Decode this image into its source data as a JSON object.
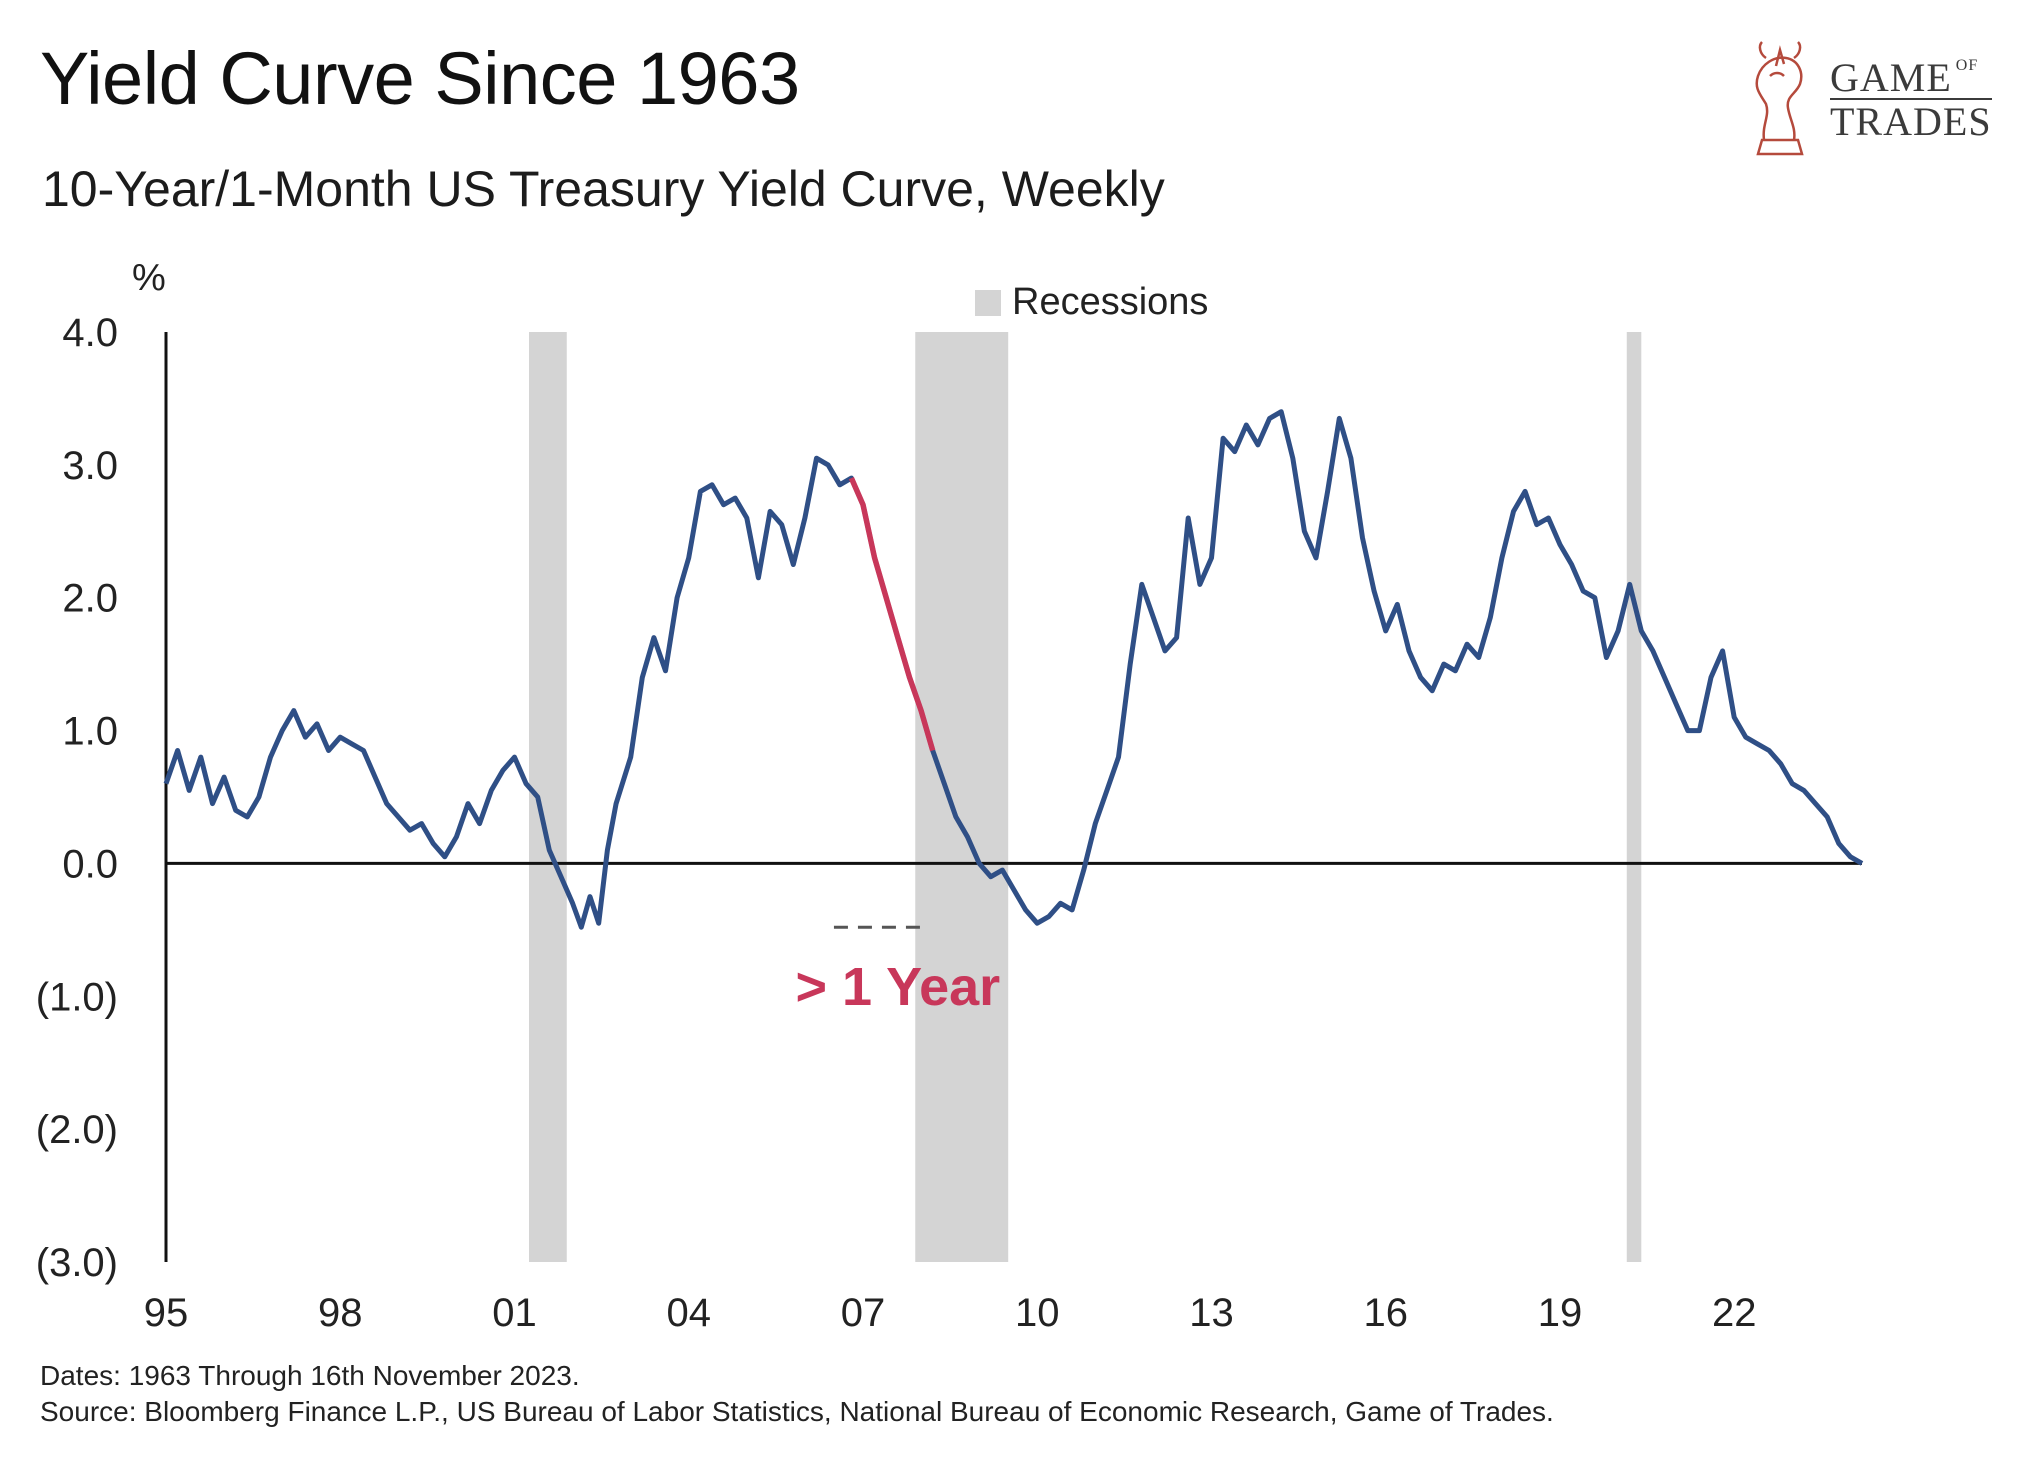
{
  "header": {
    "title": "Yield Curve Since 1963",
    "subtitle": "10-Year/1-Month US Treasury Yield Curve, Weekly"
  },
  "logo": {
    "line1": "GAME",
    "line1_small": "OF",
    "line2": "TRADES"
  },
  "footer": {
    "dates": "Dates: 1963 Through 16th November 2023.",
    "source": "Source: Bloomberg Finance L.P., US Bureau of Labor Statistics, National Bureau of Economic Research, Game of Trades."
  },
  "colors": {
    "series": "#2f4f86",
    "highlight": "#c8375a",
    "recession": "#d4d4d4",
    "axis": "#111111"
  },
  "chart_data": {
    "type": "line",
    "title": "Yield Curve Since 1963",
    "subtitle": "10-Year/1-Month US Treasury Yield Curve, Weekly",
    "ylabel": "%",
    "xlabel": "",
    "xlim": [
      1995.0,
      2024.2
    ],
    "ylim": [
      -3.0,
      4.0
    ],
    "yticks": [
      4.0,
      3.0,
      2.0,
      1.0,
      0.0,
      -1.0,
      -2.0,
      -3.0
    ],
    "ytick_labels": [
      "4.0",
      "3.0",
      "2.0",
      "1.0",
      "0.0",
      "(1.0)",
      "(2.0)",
      "(3.0)"
    ],
    "xticks": [
      1995,
      1998,
      2001,
      2004,
      2007,
      2010,
      2013,
      2016,
      2019,
      2022
    ],
    "xtick_labels": [
      "95",
      "98",
      "01",
      "04",
      "07",
      "10",
      "13",
      "16",
      "19",
      "22"
    ],
    "legend": {
      "label": "Recessions",
      "position": "top-center"
    },
    "recessions": [
      {
        "start": 2001.25,
        "end": 2001.9
      },
      {
        "start": 2007.9,
        "end": 2009.5
      },
      {
        "start": 2020.15,
        "end": 2020.4
      }
    ],
    "annotation": {
      "text": "> 1 Year",
      "x": 2007.6,
      "y": -0.9
    },
    "highlight_range": [
      2006.8,
      2007.9
    ],
    "series": [
      {
        "name": "10Y-1M Spread",
        "points": [
          [
            1995.0,
            0.6
          ],
          [
            1995.2,
            0.85
          ],
          [
            1995.4,
            0.55
          ],
          [
            1995.6,
            0.8
          ],
          [
            1995.8,
            0.45
          ],
          [
            1996.0,
            0.65
          ],
          [
            1996.2,
            0.4
          ],
          [
            1996.4,
            0.35
          ],
          [
            1996.6,
            0.5
          ],
          [
            1996.8,
            0.8
          ],
          [
            1997.0,
            1.0
          ],
          [
            1997.2,
            1.15
          ],
          [
            1997.4,
            0.95
          ],
          [
            1997.6,
            1.05
          ],
          [
            1997.8,
            0.85
          ],
          [
            1998.0,
            0.95
          ],
          [
            1998.2,
            0.9
          ],
          [
            1998.4,
            0.85
          ],
          [
            1998.6,
            0.65
          ],
          [
            1998.8,
            0.45
          ],
          [
            1999.0,
            0.35
          ],
          [
            1999.2,
            0.25
          ],
          [
            1999.4,
            0.3
          ],
          [
            1999.6,
            0.15
          ],
          [
            1999.8,
            0.05
          ],
          [
            2000.0,
            0.2
          ],
          [
            2000.2,
            0.45
          ],
          [
            2000.4,
            0.3
          ],
          [
            2000.6,
            0.55
          ],
          [
            2000.8,
            0.7
          ],
          [
            2001.0,
            0.8
          ],
          [
            2001.2,
            0.6
          ],
          [
            2001.4,
            0.5
          ],
          [
            2001.6,
            0.1
          ],
          [
            2001.8,
            -0.1
          ],
          [
            2002.0,
            -0.3
          ],
          [
            2002.15,
            -0.48
          ],
          [
            2002.3,
            -0.25
          ],
          [
            2002.45,
            -0.45
          ],
          [
            2002.6,
            0.1
          ],
          [
            2002.75,
            0.45
          ],
          [
            2003.0,
            0.8
          ],
          [
            2003.2,
            1.4
          ],
          [
            2003.4,
            1.7
          ],
          [
            2003.6,
            1.45
          ],
          [
            2003.8,
            2.0
          ],
          [
            2004.0,
            2.3
          ],
          [
            2004.2,
            2.8
          ],
          [
            2004.4,
            2.85
          ],
          [
            2004.6,
            2.7
          ],
          [
            2004.8,
            2.75
          ],
          [
            2005.0,
            2.6
          ],
          [
            2005.2,
            2.15
          ],
          [
            2005.4,
            2.65
          ],
          [
            2005.6,
            2.55
          ],
          [
            2005.8,
            2.25
          ],
          [
            2006.0,
            2.6
          ],
          [
            2006.2,
            3.05
          ],
          [
            2006.4,
            3.0
          ],
          [
            2006.6,
            2.85
          ],
          [
            2006.8,
            2.9
          ],
          [
            2007.0,
            2.7
          ],
          [
            2007.2,
            2.3
          ],
          [
            2007.4,
            2.0
          ],
          [
            2007.6,
            1.7
          ],
          [
            2007.8,
            1.4
          ],
          [
            2008.0,
            1.15
          ],
          [
            2008.2,
            0.85
          ],
          [
            2008.4,
            0.6
          ],
          [
            2008.6,
            0.35
          ],
          [
            2008.8,
            0.2
          ],
          [
            2009.0,
            0.0
          ],
          [
            2009.2,
            -0.1
          ],
          [
            2009.4,
            -0.05
          ],
          [
            2009.6,
            -0.2
          ],
          [
            2009.8,
            -0.35
          ],
          [
            2010.0,
            -0.45
          ],
          [
            2010.2,
            -0.4
          ],
          [
            2010.4,
            -0.3
          ],
          [
            2010.6,
            -0.35
          ],
          [
            2010.8,
            -0.05
          ],
          [
            2011.0,
            0.3
          ],
          [
            2011.2,
            0.55
          ],
          [
            2011.4,
            0.8
          ],
          [
            2011.6,
            1.5
          ],
          [
            2011.8,
            2.1
          ],
          [
            2012.0,
            1.85
          ],
          [
            2012.2,
            1.6
          ],
          [
            2012.4,
            1.7
          ],
          [
            2012.6,
            2.6
          ],
          [
            2012.8,
            2.1
          ],
          [
            2013.0,
            2.3
          ],
          [
            2013.2,
            3.2
          ],
          [
            2013.4,
            3.1
          ],
          [
            2013.6,
            3.3
          ],
          [
            2013.8,
            3.15
          ],
          [
            2014.0,
            3.35
          ],
          [
            2014.2,
            3.4
          ],
          [
            2014.4,
            3.05
          ],
          [
            2014.6,
            2.5
          ],
          [
            2014.8,
            2.3
          ],
          [
            2015.0,
            2.8
          ],
          [
            2015.2,
            3.35
          ],
          [
            2015.4,
            3.05
          ],
          [
            2015.6,
            2.45
          ],
          [
            2015.8,
            2.05
          ],
          [
            2016.0,
            1.75
          ],
          [
            2016.2,
            1.95
          ],
          [
            2016.4,
            1.6
          ],
          [
            2016.6,
            1.4
          ],
          [
            2016.8,
            1.3
          ],
          [
            2017.0,
            1.5
          ],
          [
            2017.2,
            1.45
          ],
          [
            2017.4,
            1.65
          ],
          [
            2017.6,
            1.55
          ],
          [
            2017.8,
            1.85
          ],
          [
            2018.0,
            2.3
          ],
          [
            2018.2,
            2.65
          ],
          [
            2018.4,
            2.8
          ],
          [
            2018.6,
            2.55
          ],
          [
            2018.8,
            2.6
          ],
          [
            2019.0,
            2.4
          ],
          [
            2019.2,
            2.25
          ],
          [
            2019.4,
            2.05
          ],
          [
            2019.6,
            2.0
          ],
          [
            2019.8,
            1.55
          ],
          [
            2020.0,
            1.75
          ],
          [
            2020.2,
            2.1
          ],
          [
            2020.4,
            1.75
          ],
          [
            2020.6,
            1.6
          ],
          [
            2020.8,
            1.4
          ],
          [
            2021.0,
            1.2
          ],
          [
            2021.2,
            1.0
          ],
          [
            2021.4,
            1.0
          ],
          [
            2021.6,
            1.4
          ],
          [
            2021.8,
            1.6
          ],
          [
            2022.0,
            1.1
          ],
          [
            2022.2,
            0.95
          ],
          [
            2022.4,
            0.9
          ],
          [
            2022.6,
            0.85
          ],
          [
            2022.8,
            0.75
          ],
          [
            2023.0,
            0.6
          ],
          [
            2023.2,
            0.55
          ],
          [
            2023.4,
            0.45
          ],
          [
            2023.6,
            0.35
          ],
          [
            2023.8,
            0.15
          ],
          [
            2024.0,
            0.05
          ],
          [
            2024.2,
            0.0
          ]
        ]
      }
    ]
  }
}
